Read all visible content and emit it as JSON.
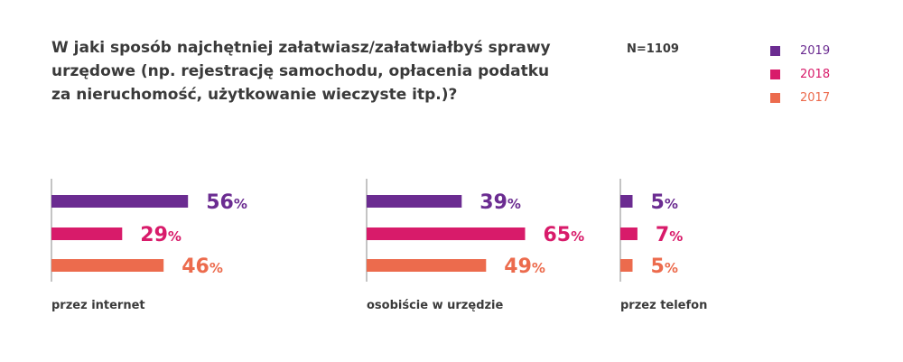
{
  "header": {
    "title": "W jaki sposób najchętniej załatwiasz/załatwiałbyś sprawy urzędowe (np. rejestrację samochodu, opłacenia podatku za nieruchomość, użytkowanie wieczyste itp.)?",
    "sample": "N=1109"
  },
  "chart_data": {
    "type": "bar",
    "orientation": "horizontal",
    "title": "W jaki sposób najchętniej załatwiasz/załatwiałbyś sprawy urzędowe (np. rejestrację samochodu, opłacenia podatku za nieruchomość, użytkowanie wieczyste itp.)?",
    "categories": [
      "przez internet",
      "osobiście w urzędzie",
      "przez telefon"
    ],
    "series": [
      {
        "name": "2019",
        "color": "#6b2c91",
        "values": [
          56,
          39,
          5
        ]
      },
      {
        "name": "2018",
        "color": "#d81b6a",
        "values": [
          29,
          65,
          7
        ]
      },
      {
        "name": "2017",
        "color": "#ec6b4d",
        "values": [
          46,
          49,
          5
        ]
      }
    ],
    "unit": "%",
    "legend_position": "top-right",
    "grid": false
  }
}
